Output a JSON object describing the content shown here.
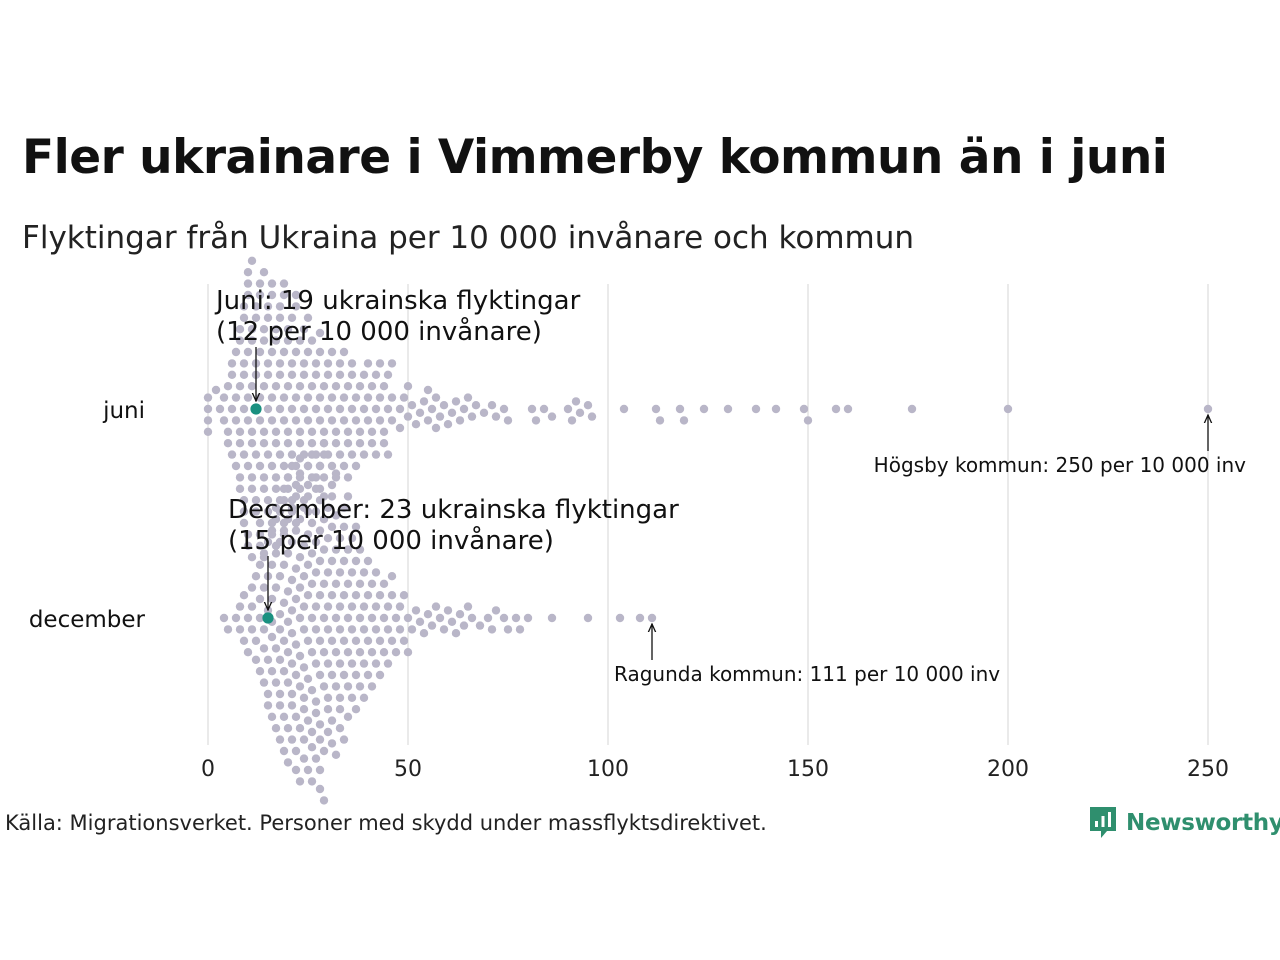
{
  "header": {
    "title": "Fler ukrainare i Vimmerby kommun än i juni",
    "subtitle": "Flyktingar från Ukraina per 10 000 invånare och kommun"
  },
  "chart_data": {
    "type": "scatter",
    "variant": "beeswarm",
    "title": "Fler ukrainare i Vimmerby kommun än i juni",
    "subtitle": "Flyktingar från Ukraina per 10 000 invånare och kommun",
    "xlim": [
      0,
      250
    ],
    "x_ticks": [
      0,
      50,
      100,
      150,
      200,
      250
    ],
    "x_tick_labels": [
      "0",
      "50",
      "100",
      "150",
      "200",
      "250"
    ],
    "grid": "vertical",
    "categories": [
      "juni",
      "december"
    ],
    "colors": {
      "points": "#b9b6c8",
      "highlight": "#1a9080",
      "grid": "#d6d6d6"
    },
    "series": [
      {
        "category": "juni",
        "values": [
          0,
          0,
          0,
          0,
          2,
          3,
          4,
          4,
          5,
          5,
          5,
          6,
          6,
          6,
          6,
          7,
          7,
          7,
          7,
          8,
          8,
          8,
          8,
          8,
          8,
          8,
          9,
          9,
          9,
          9,
          9,
          9,
          9,
          9,
          9,
          10,
          10,
          10,
          10,
          10,
          10,
          10,
          10,
          10,
          11,
          11,
          11,
          11,
          11,
          11,
          11,
          11,
          11,
          12,
          12,
          12,
          12,
          12,
          12,
          12,
          12,
          13,
          13,
          13,
          13,
          13,
          13,
          13,
          13,
          13,
          14,
          14,
          14,
          14,
          14,
          14,
          14,
          14,
          14,
          15,
          15,
          15,
          15,
          15,
          15,
          15,
          15,
          16,
          16,
          16,
          16,
          16,
          16,
          16,
          16,
          17,
          17,
          17,
          17,
          17,
          17,
          17,
          17,
          18,
          18,
          18,
          18,
          18,
          18,
          18,
          18,
          19,
          19,
          19,
          19,
          19,
          19,
          19,
          19,
          20,
          20,
          20,
          20,
          20,
          20,
          20,
          21,
          21,
          21,
          21,
          21,
          21,
          21,
          22,
          22,
          22,
          22,
          22,
          22,
          22,
          23,
          23,
          23,
          23,
          23,
          23,
          24,
          24,
          24,
          24,
          24,
          24,
          25,
          25,
          25,
          25,
          25,
          25,
          26,
          26,
          26,
          26,
          26,
          27,
          27,
          27,
          27,
          27,
          28,
          28,
          28,
          28,
          28,
          29,
          29,
          29,
          29,
          29,
          30,
          30,
          30,
          30,
          31,
          31,
          31,
          31,
          32,
          32,
          32,
          32,
          33,
          33,
          33,
          33,
          34,
          34,
          34,
          34,
          35,
          35,
          35,
          35,
          36,
          36,
          36,
          36,
          37,
          37,
          37,
          38,
          38,
          38,
          39,
          39,
          39,
          40,
          40,
          40,
          41,
          41,
          41,
          42,
          42,
          42,
          43,
          43,
          43,
          44,
          44,
          44,
          45,
          45,
          45,
          46,
          46,
          46,
          48,
          48,
          49,
          50,
          50,
          51,
          52,
          53,
          54,
          55,
          55,
          56,
          57,
          57,
          58,
          59,
          60,
          61,
          62,
          63,
          64,
          65,
          66,
          67,
          69,
          71,
          72,
          74,
          75,
          81,
          82,
          84,
          86,
          90,
          91,
          92,
          93,
          95,
          96,
          104,
          112,
          113,
          118,
          119,
          124,
          130,
          137,
          142,
          149,
          150,
          157,
          160,
          176,
          200,
          250
        ],
        "highlight": {
          "value": 12,
          "label_line1": "Juni: 19 ukrainska flyktingar",
          "label_line2": "(12 per 10 000 invånare)"
        },
        "outlier": {
          "value": 250,
          "label": "Högsby kommun: 250 per 10 000 inv"
        }
      },
      {
        "category": "december",
        "values": [
          4,
          5,
          7,
          8,
          8,
          9,
          9,
          10,
          10,
          11,
          11,
          11,
          12,
          12,
          12,
          13,
          13,
          13,
          13,
          14,
          14,
          14,
          14,
          14,
          15,
          15,
          15,
          15,
          15,
          15,
          16,
          16,
          16,
          16,
          16,
          16,
          16,
          17,
          17,
          17,
          17,
          17,
          17,
          17,
          18,
          18,
          18,
          18,
          18,
          18,
          18,
          18,
          19,
          19,
          19,
          19,
          19,
          19,
          19,
          19,
          19,
          20,
          20,
          20,
          20,
          20,
          20,
          20,
          20,
          20,
          21,
          21,
          21,
          21,
          21,
          21,
          21,
          21,
          21,
          21,
          22,
          22,
          22,
          22,
          22,
          22,
          22,
          22,
          22,
          22,
          23,
          23,
          23,
          23,
          23,
          23,
          23,
          23,
          23,
          23,
          24,
          24,
          24,
          24,
          24,
          24,
          24,
          24,
          24,
          24,
          25,
          25,
          25,
          25,
          25,
          25,
          25,
          25,
          25,
          25,
          26,
          26,
          26,
          26,
          26,
          26,
          26,
          26,
          26,
          26,
          27,
          27,
          27,
          27,
          27,
          27,
          27,
          27,
          27,
          27,
          28,
          28,
          28,
          28,
          28,
          28,
          28,
          28,
          28,
          28,
          28,
          28,
          29,
          29,
          29,
          29,
          29,
          29,
          29,
          29,
          29,
          29,
          30,
          30,
          30,
          30,
          30,
          30,
          30,
          30,
          30,
          31,
          31,
          31,
          31,
          31,
          31,
          31,
          31,
          31,
          32,
          32,
          32,
          32,
          32,
          32,
          32,
          32,
          33,
          33,
          33,
          33,
          33,
          33,
          33,
          33,
          34,
          34,
          34,
          34,
          34,
          34,
          34,
          35,
          35,
          35,
          35,
          35,
          35,
          35,
          36,
          36,
          36,
          36,
          36,
          36,
          37,
          37,
          37,
          37,
          37,
          37,
          38,
          38,
          38,
          38,
          38,
          39,
          39,
          39,
          39,
          39,
          40,
          40,
          40,
          40,
          41,
          41,
          41,
          41,
          42,
          42,
          42,
          42,
          43,
          43,
          43,
          44,
          44,
          44,
          45,
          45,
          45,
          46,
          46,
          46,
          47,
          47,
          48,
          48,
          49,
          49,
          50,
          50,
          51,
          52,
          53,
          54,
          55,
          56,
          57,
          58,
          59,
          60,
          61,
          62,
          63,
          64,
          65,
          66,
          68,
          70,
          71,
          72,
          74,
          75,
          77,
          78,
          80,
          86,
          95,
          103,
          108,
          111
        ],
        "highlight": {
          "value": 15,
          "label_line1": "December: 23 ukrainska flyktingar",
          "label_line2": "(15 per 10 000 invånare)"
        },
        "outlier": {
          "value": 111,
          "label": "Ragunda kommun: 111 per 10 000 inv"
        }
      }
    ]
  },
  "footer": {
    "source": "Källa: Migrationsverket. Personer med skydd under massflyktsdirektivet.",
    "brand": "Newsworthy",
    "brand_icon": "newsworthy-logo-icon",
    "brand_color": "#2f8f6e"
  }
}
